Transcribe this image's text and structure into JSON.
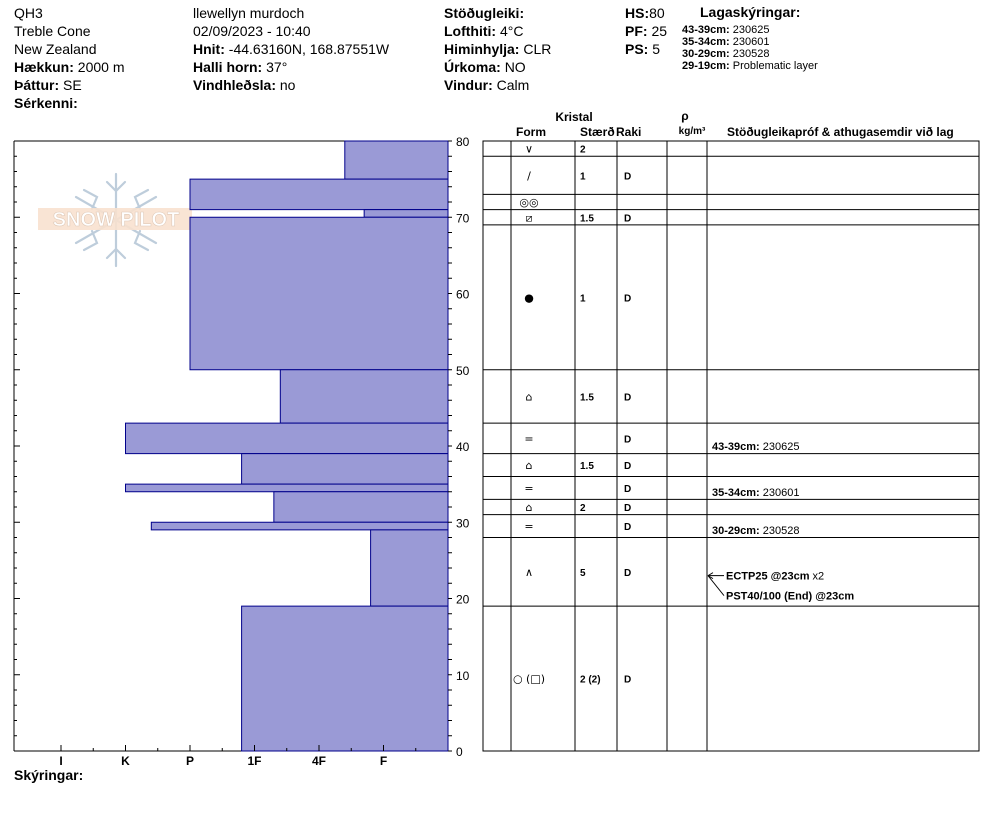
{
  "header": {
    "col1": [
      "QH3",
      "Treble Cone",
      "New Zealand"
    ],
    "elevation_label": "Hækkun:",
    "elevation": "2000 m",
    "aspect_label": "Þáttur:",
    "aspect": "SE",
    "features_label": "Sérkenni:",
    "observer": "llewellyn murdoch",
    "datetime": "02/09/2023 - 10:40",
    "coords_label": "Hnit:",
    "coords": "-44.63160N, 168.87551W",
    "slope_label": "Halli horn:",
    "slope": "37°",
    "wind_loading_label": "Vindhleðsla:",
    "wind_loading": "no",
    "stability_label": "Stöðugleiki:",
    "air_temp_label": "Lofthiti:",
    "air_temp": "4°C",
    "sky_label": "Himinhylja:",
    "sky": "CLR",
    "precip_label": "Úrkoma:",
    "precip": "NO",
    "wind_label": "Vindur:",
    "wind": "Calm",
    "hs_label": "HS:",
    "hs": "80",
    "pf_label": "PF:",
    "pf": "25",
    "ps_label": "PS:",
    "ps": "5",
    "legend_title": "Lagaskýringar:",
    "legend": [
      {
        "range": "43-39cm:",
        "text": "230625"
      },
      {
        "range": "35-34cm:",
        "text": "230601"
      },
      {
        "range": "30-29cm:",
        "text": "230528"
      },
      {
        "range": "29-19cm:",
        "text": "Problematic layer"
      }
    ],
    "logo_text": "SNOW PILOT",
    "notes_label": "Skýringar:"
  },
  "table_headers": {
    "crystal": "Kristal",
    "form": "Form",
    "size": "Stærð",
    "moisture": "Raki",
    "density_symbol": "ρ",
    "density_unit": "kg/m³",
    "tests": "Stöðugleikapróf & athugasemdir við lag"
  },
  "colors": {
    "bar_fill": "#9a9ad6",
    "bar_stroke": "#00008b"
  },
  "chart_data": {
    "type": "bar",
    "orientation": "horizontal",
    "ylabel": "",
    "ylim": [
      0,
      80
    ],
    "y_ticks": [
      0,
      10,
      20,
      30,
      40,
      50,
      60,
      70,
      80
    ],
    "x_ticks": [
      "I",
      "K",
      "P",
      "1F",
      "4F",
      "F"
    ],
    "hardness_scale_note": "F=1, 4F=2, 1F=3, P=4, K=5, I=6",
    "layers": [
      {
        "top": 80,
        "bottom": 75,
        "hardness": 1.6
      },
      {
        "top": 75,
        "bottom": 71,
        "hardness": 4.0
      },
      {
        "top": 71,
        "bottom": 70,
        "hardness": 1.3
      },
      {
        "top": 70,
        "bottom": 50,
        "hardness": 4.0
      },
      {
        "top": 50,
        "bottom": 43,
        "hardness": 2.6
      },
      {
        "top": 43,
        "bottom": 39,
        "hardness": 5.0
      },
      {
        "top": 39,
        "bottom": 35,
        "hardness": 3.2
      },
      {
        "top": 35,
        "bottom": 34,
        "hardness": 5.0
      },
      {
        "top": 34,
        "bottom": 30,
        "hardness": 2.7
      },
      {
        "top": 30,
        "bottom": 29,
        "hardness": 4.6
      },
      {
        "top": 29,
        "bottom": 19,
        "hardness": 1.2
      },
      {
        "top": 19,
        "bottom": 0,
        "hardness": 3.2
      }
    ]
  },
  "layers_table": [
    {
      "top": 80,
      "bottom": 78,
      "form": "∨",
      "size": "2",
      "moisture": ""
    },
    {
      "top": 78,
      "bottom": 73,
      "form": "∕",
      "size": "1",
      "moisture": "D"
    },
    {
      "top": 73,
      "bottom": 71,
      "form": "◎◎",
      "size": "",
      "moisture": ""
    },
    {
      "top": 71,
      "bottom": 69,
      "form": "⧄",
      "size": "1.5",
      "moisture": "D"
    },
    {
      "top": 69,
      "bottom": 50,
      "form": "●",
      "size": "1",
      "moisture": "D"
    },
    {
      "top": 50,
      "bottom": 43,
      "form": "⌂",
      "size": "1.5",
      "moisture": "D"
    },
    {
      "top": 43,
      "bottom": 39,
      "form": "=",
      "size": "",
      "moisture": "D"
    },
    {
      "top": 39,
      "bottom": 36,
      "form": "⌂",
      "size": "1.5",
      "moisture": "D"
    },
    {
      "top": 36,
      "bottom": 33,
      "form": "=",
      "size": "",
      "moisture": "D"
    },
    {
      "top": 33,
      "bottom": 31,
      "form": "⌂",
      "size": "2",
      "moisture": "D"
    },
    {
      "top": 31,
      "bottom": 28,
      "form": "=",
      "size": "",
      "moisture": "D"
    },
    {
      "top": 28,
      "bottom": 19,
      "form": "∧",
      "size": "5",
      "moisture": "D"
    },
    {
      "top": 19,
      "bottom": 0,
      "form": "○ (□)",
      "size": "2 (2)",
      "moisture": "D"
    }
  ],
  "comments": [
    {
      "depth": 40,
      "label": "43-39cm:",
      "text": "230625"
    },
    {
      "depth": 34,
      "label": "35-34cm:",
      "text": "230601"
    },
    {
      "depth": 29,
      "label": "30-29cm:",
      "text": "230528"
    }
  ],
  "tests": [
    {
      "depth": 23,
      "label": "ECTP25 @23cm",
      "extra": "x2"
    },
    {
      "depth": 23,
      "label": "PST40/100 (End) @23cm",
      "extra": ""
    }
  ]
}
